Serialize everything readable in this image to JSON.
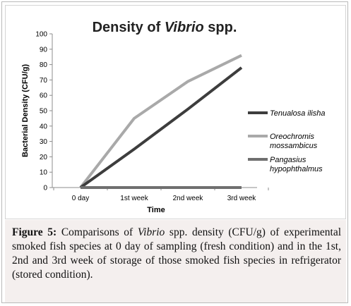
{
  "chart_data": {
    "type": "line",
    "title_prefix": "Density of ",
    "title_italic": "Vibrio",
    "title_suffix": " spp.",
    "xlabel": "Time",
    "ylabel": "Bacterial Density (CFU/g)",
    "categories": [
      "0 day",
      "1st week",
      "2nd week",
      "3rd week"
    ],
    "ylim": [
      0,
      100
    ],
    "yticks": [
      "0",
      "10",
      "20",
      "30",
      "40",
      "50",
      "60",
      "70",
      "80",
      "90",
      "100"
    ],
    "legend_position": "right",
    "grid": false,
    "series": [
      {
        "name_line1": "Tenualosa ilisha",
        "name_line2": "",
        "color": "#3d3d3d",
        "values": [
          0,
          25,
          51,
          78
        ]
      },
      {
        "name_line1": "Oreochromis",
        "name_line2": "mossambicus",
        "color": "#a9a9a9",
        "values": [
          0,
          45,
          69,
          86
        ]
      },
      {
        "name_line1": "Pangasius",
        "name_line2": "hypophthalmus",
        "color": "#6f6f6f",
        "values": [
          0,
          0,
          0,
          0
        ]
      }
    ]
  },
  "caption": {
    "label": "Figure 5:",
    "text_before": " Comparisons of ",
    "italic": "Vibrio",
    "text_after": " spp. density (CFU/g) of experimental smoked fish species at 0 day of sampling (fresh condition) and in the 1st, 2nd and 3rd week of storage of those smoked fish species in refrigerator (stored condition)."
  }
}
